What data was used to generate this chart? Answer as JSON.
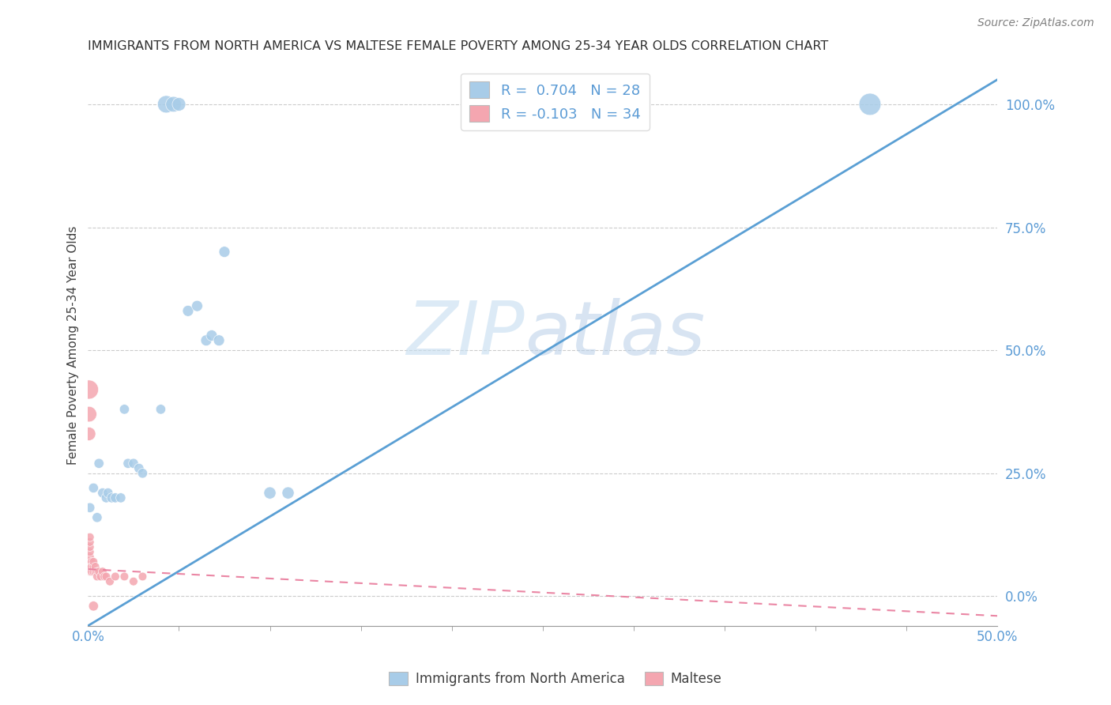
{
  "title": "IMMIGRANTS FROM NORTH AMERICA VS MALTESE FEMALE POVERTY AMONG 25-34 YEAR OLDS CORRELATION CHART",
  "source": "Source: ZipAtlas.com",
  "ylabel": "Female Poverty Among 25-34 Year Olds",
  "right_yticks": [
    0.0,
    0.25,
    0.5,
    0.75,
    1.0
  ],
  "right_yticklabels": [
    "0.0%",
    "25.0%",
    "50.0%",
    "75.0%",
    "100.0%"
  ],
  "xlim": [
    0.0,
    0.5
  ],
  "ylim": [
    -0.06,
    1.08
  ],
  "blue_color": "#a8cce8",
  "pink_color": "#f4a6b0",
  "blue_line_color": "#5a9fd4",
  "pink_line_color": "#e8799a",
  "blue_scatter": [
    [
      0.001,
      0.18
    ],
    [
      0.003,
      0.22
    ],
    [
      0.005,
      0.16
    ],
    [
      0.006,
      0.27
    ],
    [
      0.008,
      0.21
    ],
    [
      0.01,
      0.2
    ],
    [
      0.011,
      0.21
    ],
    [
      0.013,
      0.2
    ],
    [
      0.015,
      0.2
    ],
    [
      0.018,
      0.2
    ],
    [
      0.02,
      0.38
    ],
    [
      0.022,
      0.27
    ],
    [
      0.025,
      0.27
    ],
    [
      0.028,
      0.26
    ],
    [
      0.03,
      0.25
    ],
    [
      0.04,
      0.38
    ],
    [
      0.043,
      1.0
    ],
    [
      0.047,
      1.0
    ],
    [
      0.05,
      1.0
    ],
    [
      0.055,
      0.58
    ],
    [
      0.06,
      0.59
    ],
    [
      0.065,
      0.52
    ],
    [
      0.068,
      0.53
    ],
    [
      0.072,
      0.52
    ],
    [
      0.075,
      0.7
    ],
    [
      0.1,
      0.21
    ],
    [
      0.11,
      0.21
    ],
    [
      0.43,
      1.0
    ]
  ],
  "pink_scatter": [
    [
      0.0005,
      0.42
    ],
    [
      0.0005,
      0.37
    ],
    [
      0.0005,
      0.33
    ],
    [
      0.001,
      0.05
    ],
    [
      0.001,
      0.06
    ],
    [
      0.001,
      0.07
    ],
    [
      0.001,
      0.08
    ],
    [
      0.001,
      0.09
    ],
    [
      0.001,
      0.1
    ],
    [
      0.001,
      0.11
    ],
    [
      0.001,
      0.12
    ],
    [
      0.0015,
      0.05
    ],
    [
      0.0015,
      0.06
    ],
    [
      0.002,
      0.07
    ],
    [
      0.002,
      0.05
    ],
    [
      0.002,
      0.06
    ],
    [
      0.003,
      0.05
    ],
    [
      0.003,
      0.06
    ],
    [
      0.003,
      0.07
    ],
    [
      0.004,
      0.05
    ],
    [
      0.004,
      0.06
    ],
    [
      0.005,
      0.05
    ],
    [
      0.005,
      0.04
    ],
    [
      0.006,
      0.05
    ],
    [
      0.007,
      0.04
    ],
    [
      0.008,
      0.05
    ],
    [
      0.009,
      0.04
    ],
    [
      0.01,
      0.04
    ],
    [
      0.012,
      0.03
    ],
    [
      0.015,
      0.04
    ],
    [
      0.02,
      0.04
    ],
    [
      0.025,
      0.03
    ],
    [
      0.03,
      0.04
    ],
    [
      0.003,
      -0.02
    ]
  ],
  "blue_sizes": [
    80,
    80,
    80,
    80,
    80,
    80,
    80,
    80,
    80,
    80,
    80,
    80,
    80,
    80,
    80,
    80,
    250,
    200,
    150,
    100,
    100,
    100,
    100,
    100,
    100,
    120,
    120,
    400
  ],
  "pink_sizes": [
    300,
    200,
    150,
    60,
    60,
    60,
    60,
    60,
    60,
    60,
    60,
    60,
    60,
    60,
    60,
    60,
    60,
    60,
    60,
    60,
    60,
    60,
    60,
    60,
    60,
    60,
    60,
    60,
    60,
    60,
    60,
    60,
    60,
    80
  ],
  "blue_line_x": [
    0.0,
    0.5
  ],
  "blue_line_y": [
    -0.06,
    1.05
  ],
  "pink_line_x": [
    0.0,
    0.5
  ],
  "pink_line_y": [
    0.055,
    -0.04
  ],
  "watermark_zip": "ZIP",
  "watermark_atlas": "atlas",
  "xtick_minor_positions": [
    0.05,
    0.1,
    0.15,
    0.2,
    0.25,
    0.3,
    0.35,
    0.4,
    0.45
  ],
  "legend_text1": "R =  0.704   N = 28",
  "legend_text2": "R = -0.103   N = 34",
  "bottom_legend1": "Immigrants from North America",
  "bottom_legend2": "Maltese"
}
